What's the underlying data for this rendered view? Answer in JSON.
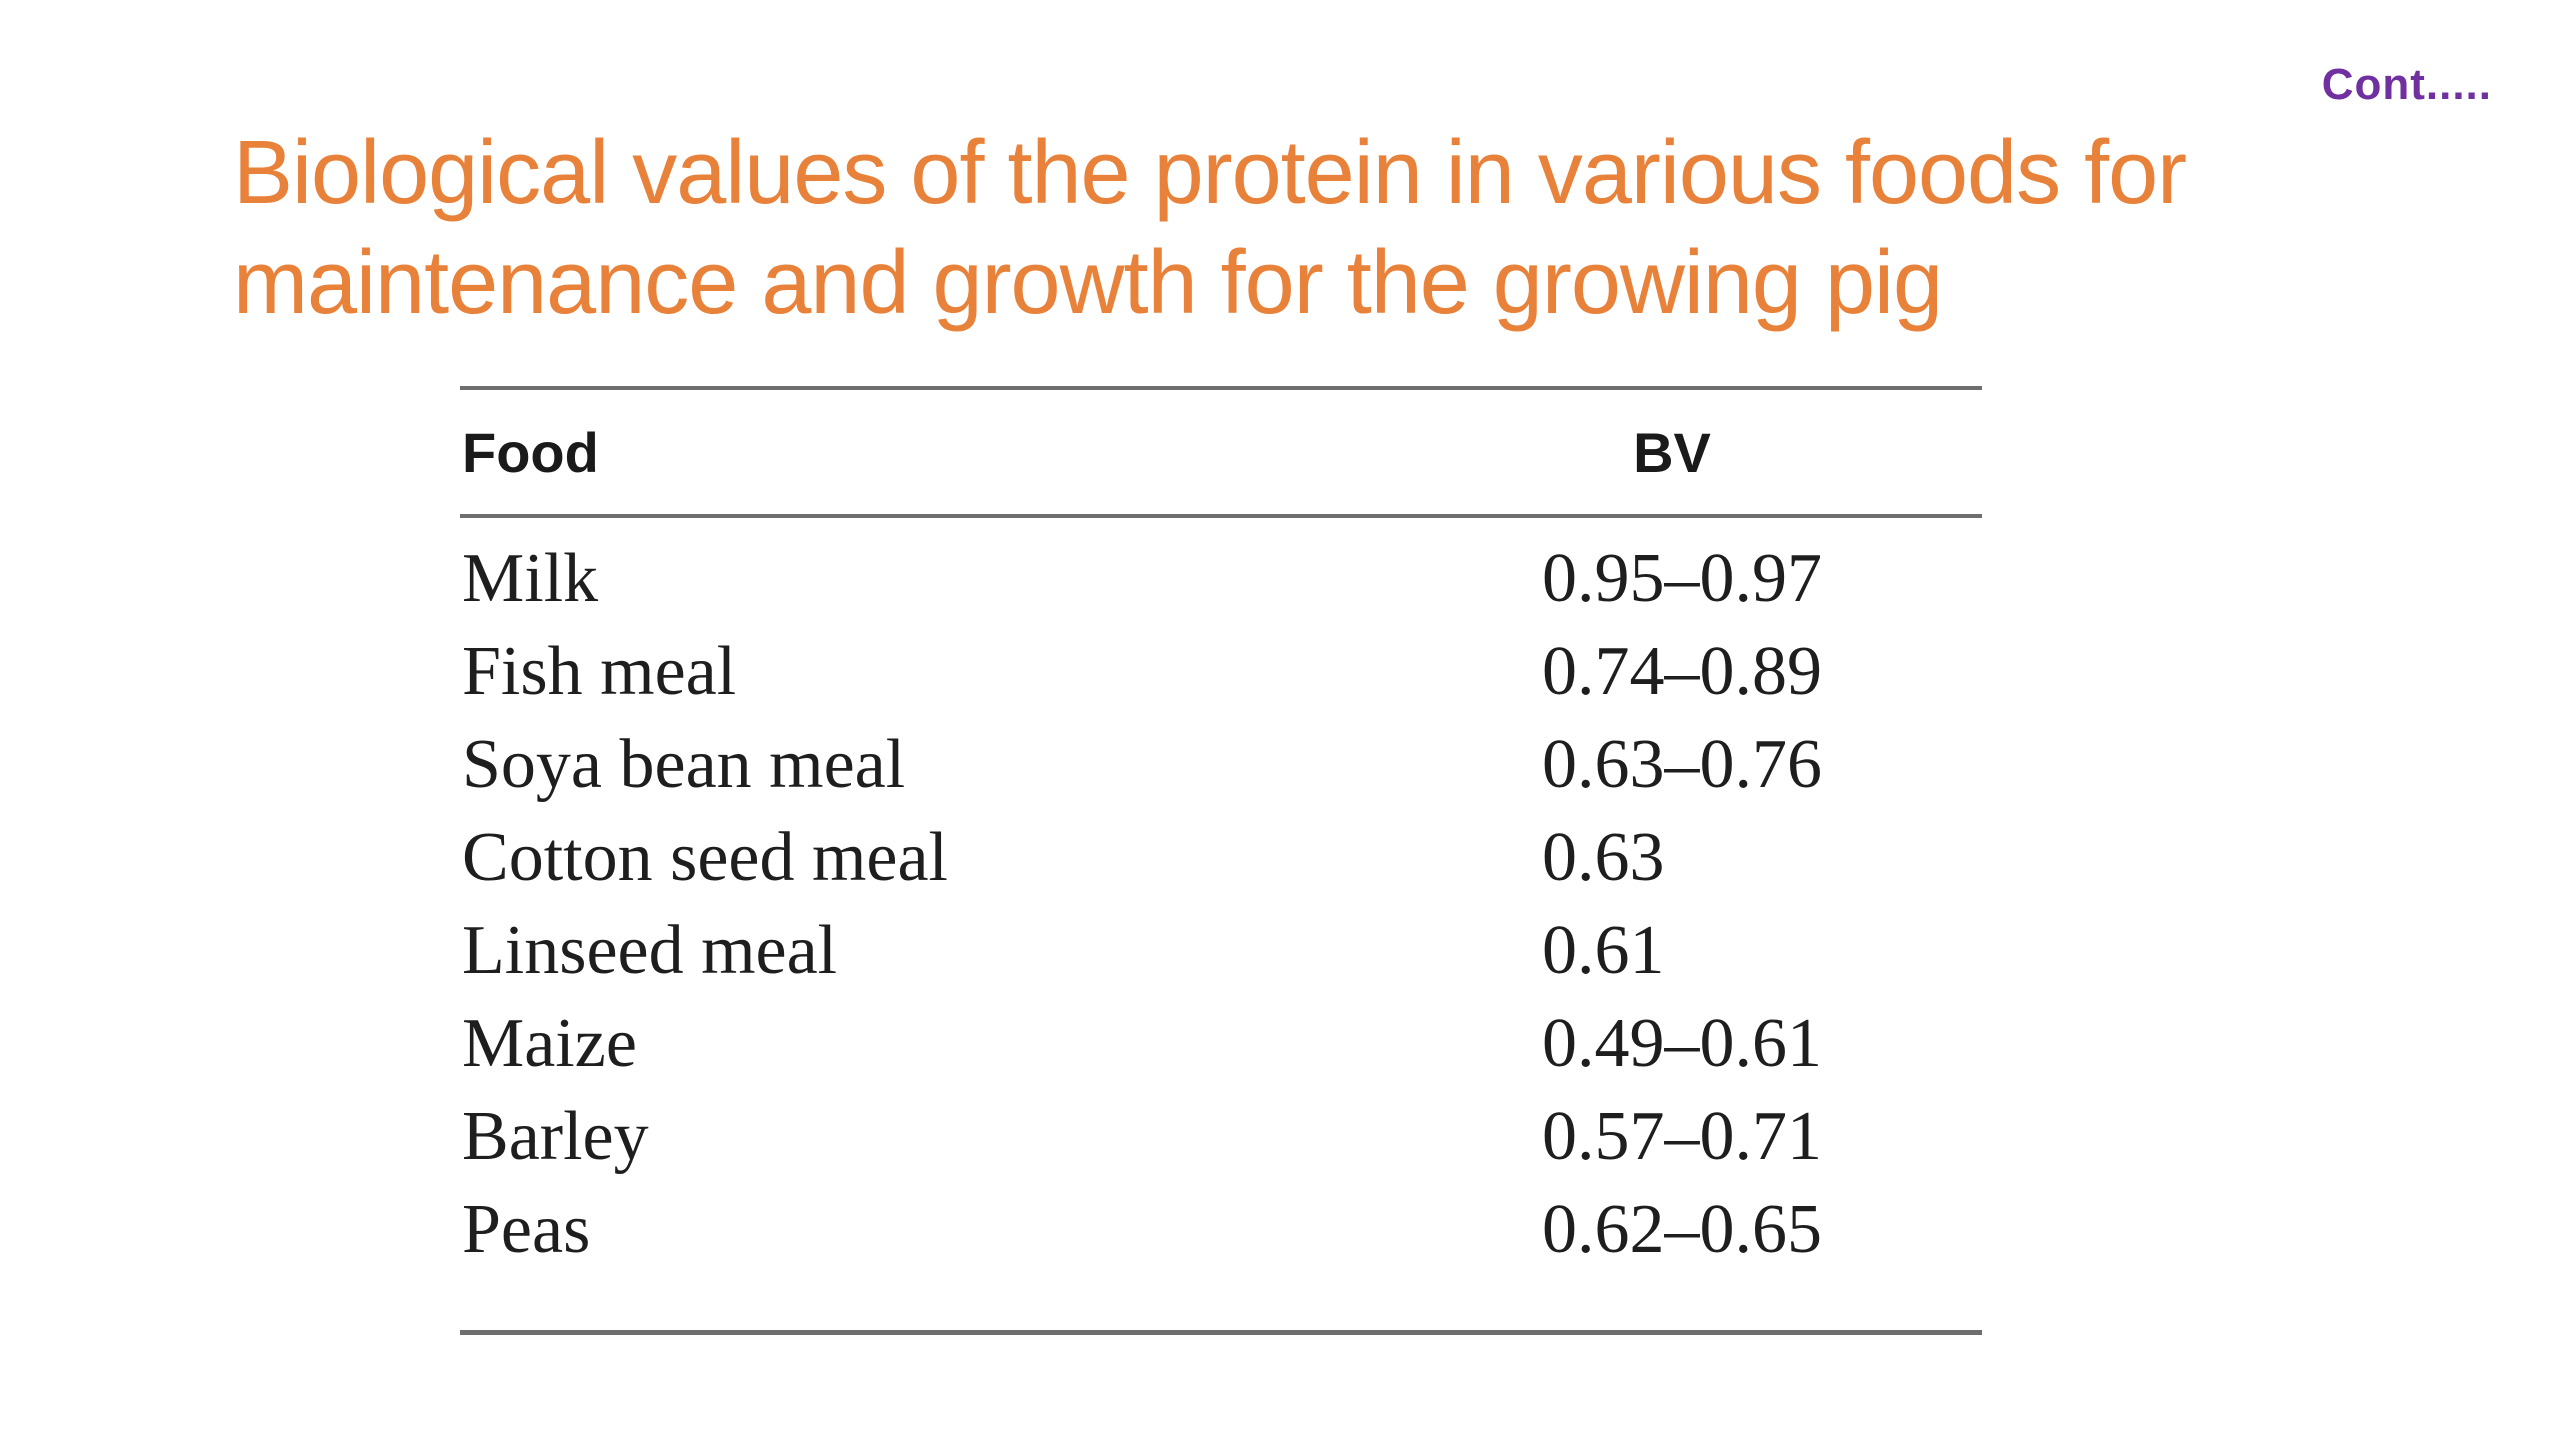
{
  "slide": {
    "continuation_label": "Cont.....",
    "title_lines": [
      "Biological values of the protein in various foods for",
      "maintenance and growth for the growing pig"
    ]
  },
  "table": {
    "headers": {
      "food": "Food",
      "bv": "BV"
    },
    "rows": [
      {
        "food": "Milk",
        "bv": "0.95–0.97"
      },
      {
        "food": "Fish meal",
        "bv": "0.74–0.89"
      },
      {
        "food": "Soya bean meal",
        "bv": "0.63–0.76"
      },
      {
        "food": "Cotton seed meal",
        "bv": "0.63"
      },
      {
        "food": "Linseed meal",
        "bv": "0.61"
      },
      {
        "food": "Maize",
        "bv": "0.49–0.61"
      },
      {
        "food": "Barley",
        "bv": "0.57–0.71"
      },
      {
        "food": "Peas",
        "bv": "0.62–0.65"
      }
    ]
  },
  "colors": {
    "title": "#e8823a",
    "continuation": "#7030a0",
    "rules": "#6e6e6e",
    "text": "#1e1e1e",
    "background": "#ffffff"
  }
}
